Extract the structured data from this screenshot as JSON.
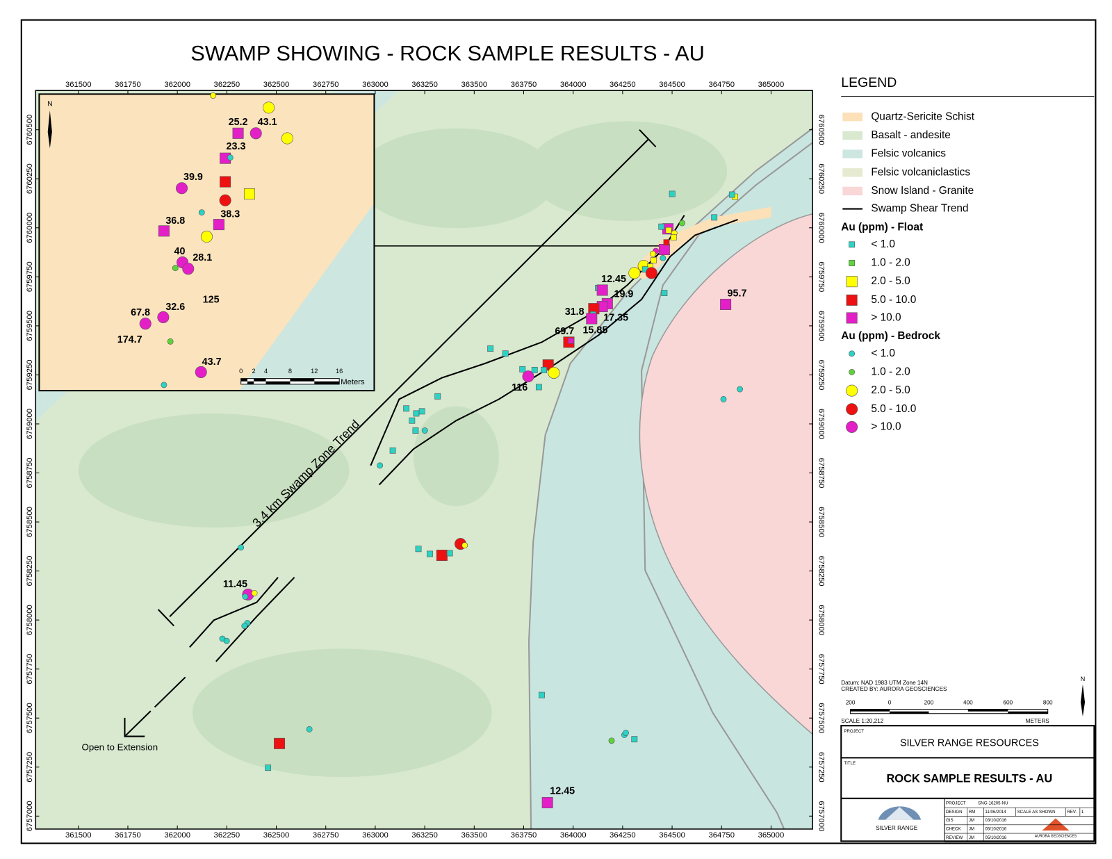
{
  "title": "SWAMP SHOWING - ROCK SAMPLE RESULTS - AU",
  "map": {
    "xlim": [
      361284,
      365210
    ],
    "ylim": [
      6756934,
      6760700
    ],
    "xticks": [
      361500,
      361750,
      362000,
      362250,
      362500,
      362750,
      363000,
      363250,
      363500,
      363750,
      364000,
      364250,
      364500,
      364750,
      365000
    ],
    "yticks": [
      6760500,
      6760250,
      6760000,
      6759750,
      6759500,
      6759250,
      6759000,
      6758750,
      6758500,
      6758250,
      6758000,
      6757750,
      6757500,
      6757250,
      6757000
    ],
    "labels": [
      "12.45",
      "19.9",
      "31.8",
      "17.35",
      "15.85",
      "69.7",
      "116",
      "95.7",
      "11.45",
      "12.45"
    ],
    "trend_label": "3.4 km Swamp Zone Trend",
    "extension_label": "Open to Extension"
  },
  "inset": {
    "north": "N",
    "labels": [
      "25.2",
      "43.1",
      "23.3",
      "39.9",
      "38.3",
      "36.8",
      "40",
      "28.1",
      "125",
      "67.8",
      "32.6",
      "174.7",
      "43.7"
    ],
    "scale_labels": [
      "0",
      "2",
      "4",
      "8",
      "12",
      "16"
    ],
    "scale_unit": "Meters"
  },
  "legend": {
    "title": "LEGEND",
    "units": [
      "Quartz-Sericite Schist",
      "Basalt - andesite",
      "Felsic volcanics",
      "Felsic volcaniclastics",
      "Snow Island - Granite"
    ],
    "line": "Swamp Shear Trend",
    "float_title": "Au (ppm) - Float",
    "float_classes": [
      "< 1.0",
      "1.0 - 2.0",
      "2.0 - 5.0",
      "5.0 - 10.0",
      "> 10.0"
    ],
    "bedrock_title": "Au (ppm) - Bedrock",
    "bedrock_classes": [
      "< 1.0",
      "1.0 - 2.0",
      "2.0 - 5.0",
      "5.0 - 10.0",
      "> 10.0"
    ]
  },
  "map_info": {
    "datum": "Datum: NAD 1983 UTM Zone 14N",
    "created": "CREATED BY: AURORA GEOSCIENCES",
    "north": "N",
    "scale_labels": [
      "200",
      "0",
      "200",
      "400",
      "600",
      "800"
    ],
    "scale": "SCALE 1:20,212",
    "unit": "METERS"
  },
  "title_block": {
    "project_label": "PROJECT",
    "project": "SILVER RANGE RESOURCES",
    "title_label": "TITLE",
    "title": "ROCK SAMPLE RESULTS - AU",
    "rows": [
      [
        "PROJECT",
        "SNG-16205-NU"
      ],
      [
        "DESIGN",
        "RM",
        "11/06/2014",
        "SCALE AS SHOWN",
        "REV.",
        "1"
      ],
      [
        "GIS",
        "JM",
        "03/10/2016"
      ],
      [
        "CHECK",
        "JM",
        "05/10/2016"
      ],
      [
        "REVIEW",
        "JM",
        "05/10/2016"
      ]
    ],
    "logo_left": "SILVER RANGE",
    "logo_right": "AURORA GEOSCIENCES"
  }
}
